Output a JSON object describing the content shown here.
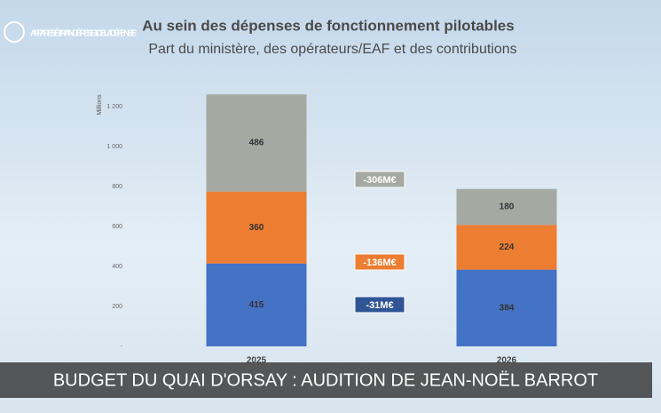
{
  "logo": "AFFAIRES ÉTRANGÈRES ET DE LA DÉFENSE",
  "banner": "BUDGET DU QUAI D'ORSAY : AUDITION DE JEAN-NOËL BARROT",
  "chart_data": {
    "type": "stacked-bar",
    "title": "Au sein des dépenses de fonctionnement pilotables",
    "subtitle": "Part du ministère, des opérateurs/EAF et des contributions",
    "ylabel": "Millions",
    "categories": [
      "2025",
      "2026"
    ],
    "series": [
      {
        "color": "#4472c4",
        "values": [
          415,
          384
        ]
      },
      {
        "color": "#ed7d31",
        "values": [
          360,
          224
        ]
      },
      {
        "color": "#a6a8a2",
        "values": [
          486,
          180
        ]
      }
    ],
    "ylim": [
      0,
      1300
    ],
    "yticks": [
      {
        "value": 0,
        "label": "-"
      },
      200,
      400,
      600,
      800,
      {
        "value": 1000,
        "label": "1 000"
      },
      {
        "value": 1200,
        "label": "1 200"
      }
    ],
    "annotations": [
      {
        "text": "-306M€",
        "color": "#a6a8a2"
      },
      {
        "text": "-136M€",
        "color": "#ed7d31"
      },
      {
        "text": "-31M€",
        "color": "#2f5597"
      }
    ]
  }
}
